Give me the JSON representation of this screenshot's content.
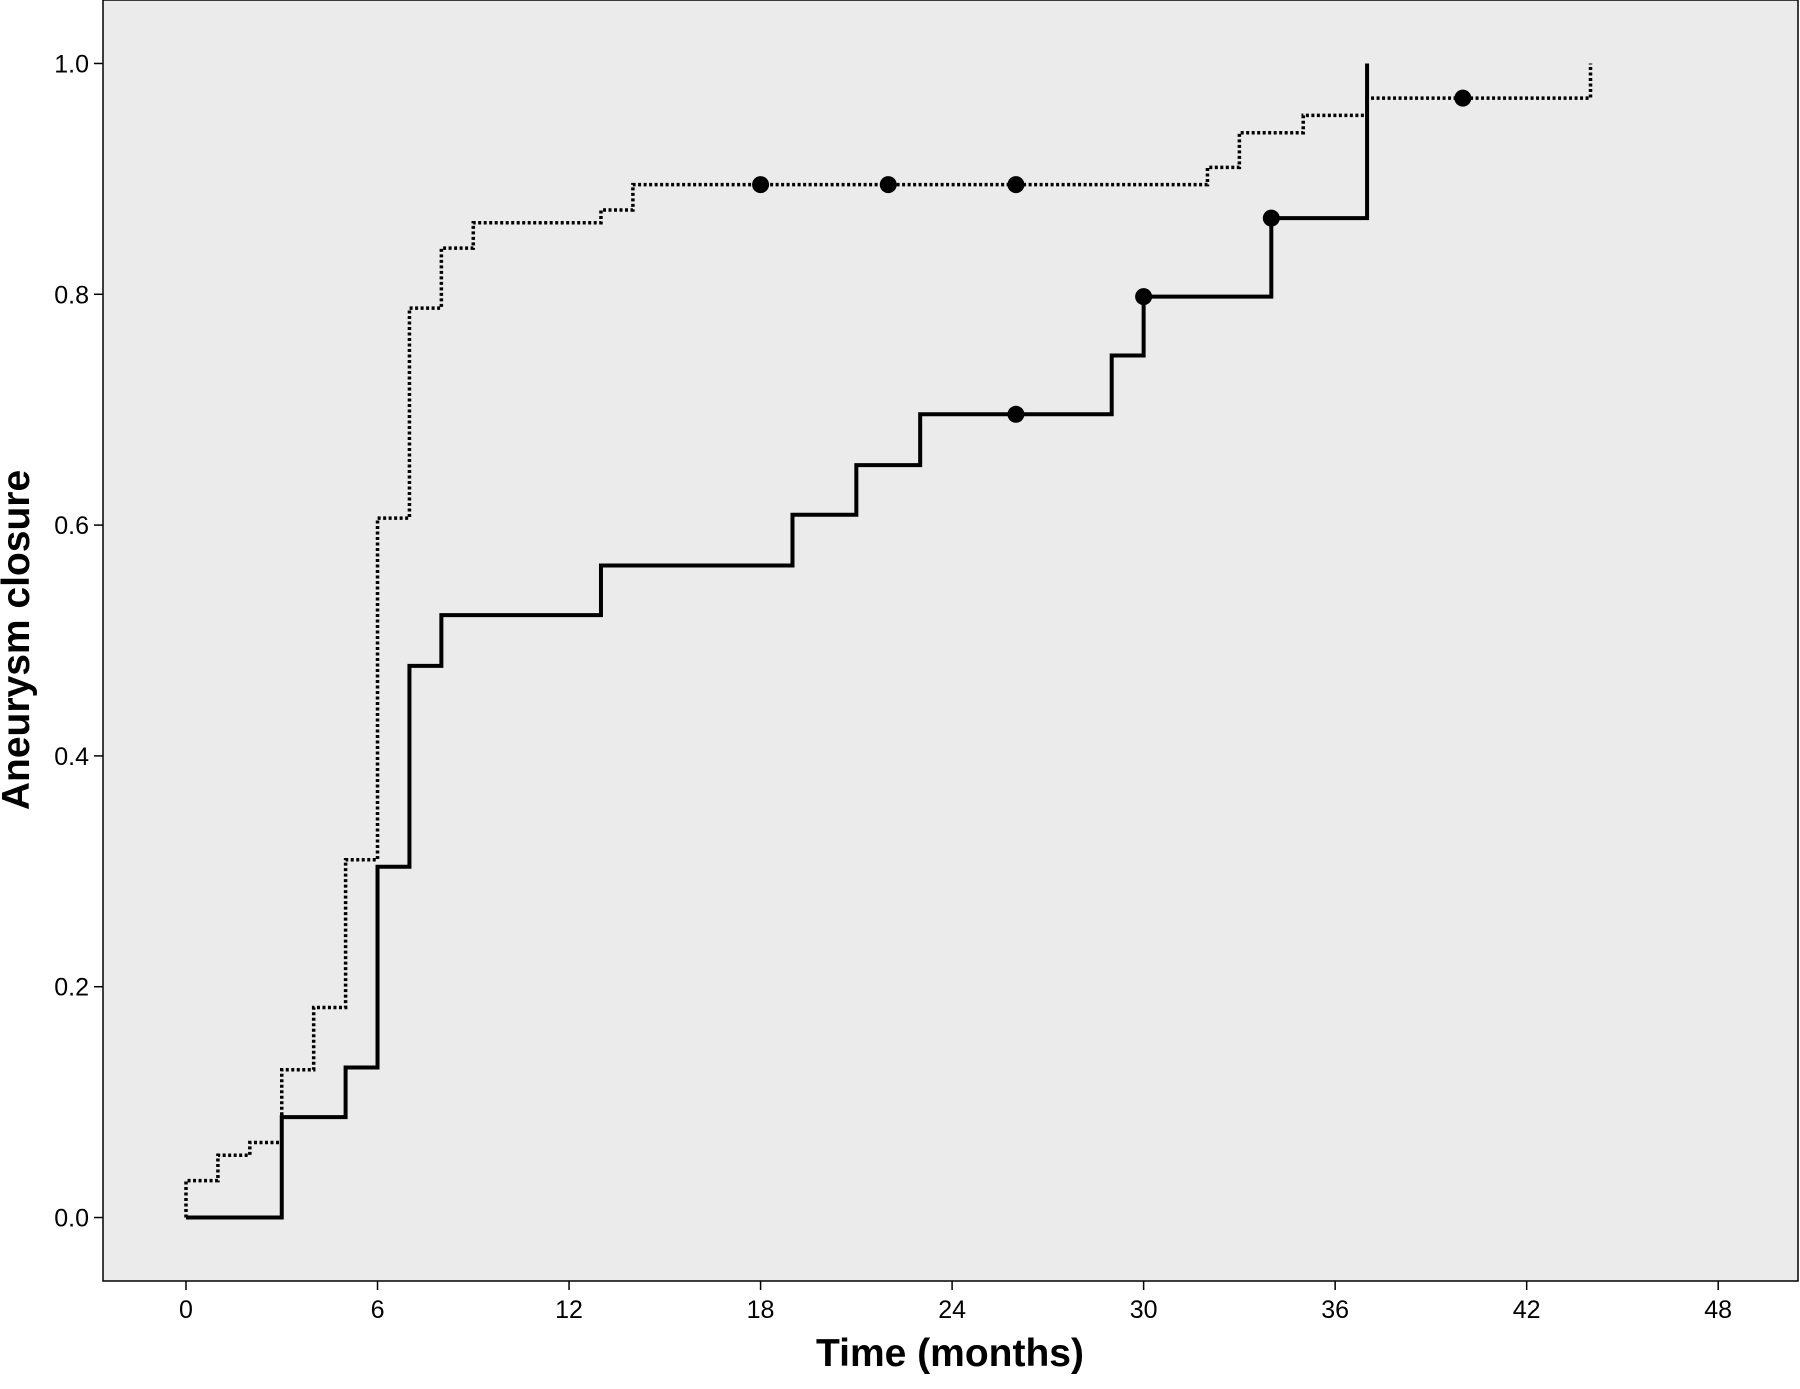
{
  "chart_data": {
    "type": "line",
    "subtype": "kaplan-meier-step",
    "title": "",
    "xlabel": "Time (months)",
    "ylabel": "Aneurysm closure",
    "xlim": [
      -2.6,
      50.5
    ],
    "ylim": [
      -0.055,
      1.055
    ],
    "xticks": [
      0,
      6,
      12,
      18,
      24,
      30,
      36,
      42,
      48
    ],
    "yticks": [
      0.0,
      0.2,
      0.4,
      0.6,
      0.8,
      1.0
    ],
    "ytick_labels": [
      "0.0",
      "0.2",
      "0.4",
      "0.6",
      "0.8",
      "1.0"
    ],
    "grid": false,
    "legend": "none",
    "plot_background": "#ebebeb",
    "series": [
      {
        "style": "dotted",
        "color": "#000000",
        "steps": [
          [
            0,
            0.0
          ],
          [
            0,
            0.032
          ],
          [
            1,
            0.054
          ],
          [
            2,
            0.065
          ],
          [
            3,
            0.128
          ],
          [
            4,
            0.182
          ],
          [
            5,
            0.31
          ],
          [
            6,
            0.606
          ],
          [
            7,
            0.788
          ],
          [
            8,
            0.84
          ],
          [
            9,
            0.862
          ],
          [
            13,
            0.873
          ],
          [
            14,
            0.895
          ],
          [
            32,
            0.91
          ],
          [
            33,
            0.94
          ],
          [
            35,
            0.955
          ],
          [
            37,
            0.97
          ],
          [
            44,
            1.0
          ]
        ],
        "censored": [
          [
            18,
            0.895
          ],
          [
            22,
            0.895
          ],
          [
            26,
            0.895
          ],
          [
            40,
            0.97
          ]
        ]
      },
      {
        "style": "solid",
        "color": "#000000",
        "steps": [
          [
            0,
            0.0
          ],
          [
            3,
            0.087
          ],
          [
            5,
            0.13
          ],
          [
            6,
            0.304
          ],
          [
            7,
            0.478
          ],
          [
            8,
            0.522
          ],
          [
            13,
            0.565
          ],
          [
            19,
            0.609
          ],
          [
            21,
            0.652
          ],
          [
            23,
            0.696
          ],
          [
            29,
            0.747
          ],
          [
            30,
            0.798
          ],
          [
            34,
            0.866
          ],
          [
            37,
            1.0
          ]
        ],
        "censored": [
          [
            26,
            0.696
          ],
          [
            30,
            0.798
          ],
          [
            34,
            0.866
          ]
        ]
      }
    ]
  }
}
